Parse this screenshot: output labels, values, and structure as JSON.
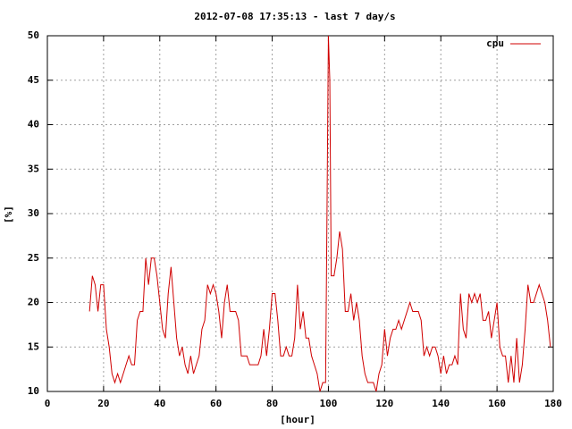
{
  "chart_data": {
    "type": "line",
    "title": "2012-07-08 17:35:13 - last 7 day/s",
    "x_label": "[hour]",
    "y_label": "[%]",
    "xlim": [
      0,
      180
    ],
    "xticks": [
      0,
      20,
      40,
      60,
      80,
      100,
      120,
      140,
      160,
      180
    ],
    "ylim": [
      10,
      50
    ],
    "yticks": [
      10,
      15,
      20,
      25,
      30,
      35,
      40,
      45,
      50
    ],
    "grid": true,
    "legend": "top-right",
    "x": [
      15,
      16,
      17,
      18,
      19,
      20,
      21,
      22,
      23,
      24,
      25,
      26,
      27,
      28,
      29,
      30,
      31,
      32,
      33,
      34,
      35,
      36,
      37,
      38,
      39,
      40,
      41,
      42,
      43,
      44,
      45,
      46,
      47,
      48,
      49,
      50,
      51,
      52,
      53,
      54,
      55,
      56,
      57,
      58,
      59,
      60,
      61,
      62,
      63,
      64,
      65,
      66,
      67,
      68,
      69,
      70,
      71,
      72,
      73,
      74,
      75,
      76,
      77,
      78,
      79,
      80,
      81,
      82,
      83,
      84,
      85,
      86,
      87,
      88,
      89,
      90,
      91,
      92,
      93,
      94,
      95,
      96,
      97,
      98,
      99,
      99.5,
      100,
      100.5,
      101,
      102,
      103,
      104,
      105,
      106,
      107,
      108,
      109,
      110,
      111,
      112,
      113,
      114,
      115,
      116,
      117,
      118,
      119,
      120,
      121,
      122,
      123,
      124,
      125,
      126,
      127,
      128,
      129,
      130,
      131,
      132,
      133,
      134,
      135,
      136,
      137,
      138,
      139,
      140,
      141,
      142,
      143,
      144,
      145,
      146,
      147,
      148,
      149,
      150,
      151,
      152,
      153,
      154,
      155,
      156,
      157,
      158,
      159,
      160,
      161,
      162,
      163,
      164,
      165,
      166,
      167,
      168,
      169,
      170,
      171,
      172,
      173,
      174,
      175,
      176,
      177,
      178,
      179
    ],
    "series": [
      {
        "name": "cpu",
        "color": "#d00000",
        "values": [
          19,
          23,
          22,
          19,
          22,
          22,
          17,
          15,
          12,
          11,
          12,
          11,
          12,
          13,
          14,
          13,
          13,
          18,
          19,
          19,
          25,
          22,
          25,
          25,
          23,
          20,
          17,
          16,
          21,
          24,
          20,
          16,
          14,
          15,
          13,
          12,
          14,
          12,
          13,
          14,
          17,
          18,
          22,
          21,
          22,
          21,
          19,
          16,
          20,
          22,
          19,
          19,
          19,
          18,
          14,
          14,
          14,
          13,
          13,
          13,
          13,
          14,
          17,
          14,
          17,
          21,
          21,
          18,
          14,
          14,
          15,
          14,
          14,
          16,
          22,
          17,
          19,
          16,
          16,
          14,
          13,
          12,
          10,
          11,
          11,
          30,
          50,
          45,
          23,
          23,
          25,
          28,
          26,
          19,
          19,
          21,
          18,
          20,
          18,
          14,
          12,
          11,
          11,
          11,
          10,
          12,
          13,
          17,
          14,
          16,
          17,
          17,
          18,
          17,
          18,
          19,
          20,
          19,
          19,
          19,
          18,
          14,
          15,
          14,
          15,
          15,
          14,
          12,
          14,
          12,
          13,
          13,
          14,
          13,
          21,
          17,
          16,
          21,
          20,
          21,
          20,
          21,
          18,
          18,
          19,
          16,
          18,
          20,
          15,
          14,
          14,
          11,
          14,
          11,
          16,
          11,
          13,
          17,
          22,
          20,
          20,
          21,
          22,
          21,
          20,
          18,
          15
        ]
      }
    ]
  }
}
